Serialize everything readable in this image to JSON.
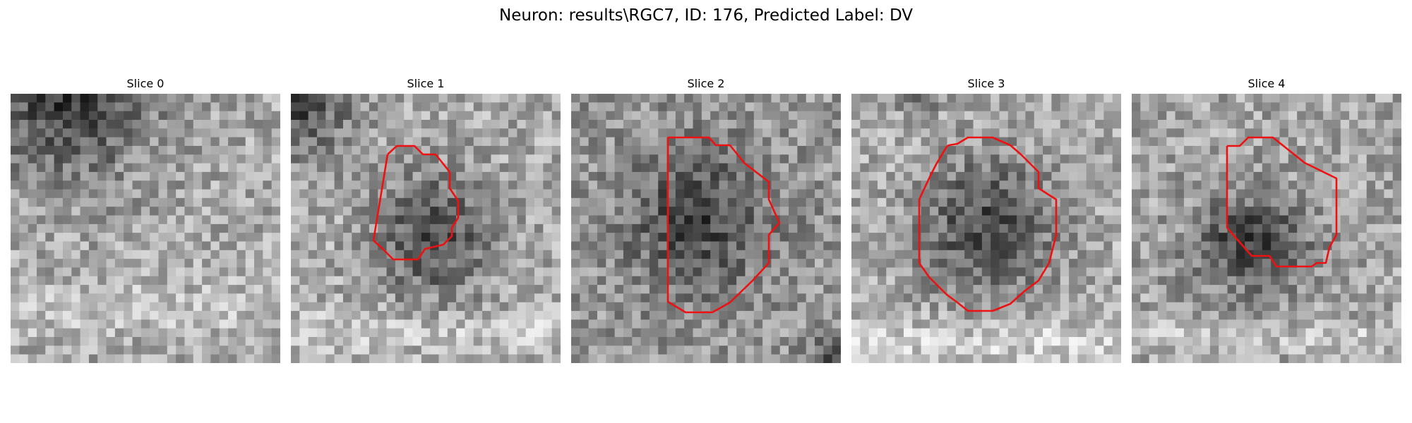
{
  "figure": {
    "title": "Neuron: results\\RGC7, ID: 176, Predicted Label: DV"
  },
  "colors": {
    "contour": "#ee1111",
    "background": "#ffffff"
  },
  "panels": [
    {
      "title": "Slice 0"
    },
    {
      "title": "Slice 1"
    },
    {
      "title": "Slice 2"
    },
    {
      "title": "Slice 3"
    },
    {
      "title": "Slice 4"
    }
  ]
}
